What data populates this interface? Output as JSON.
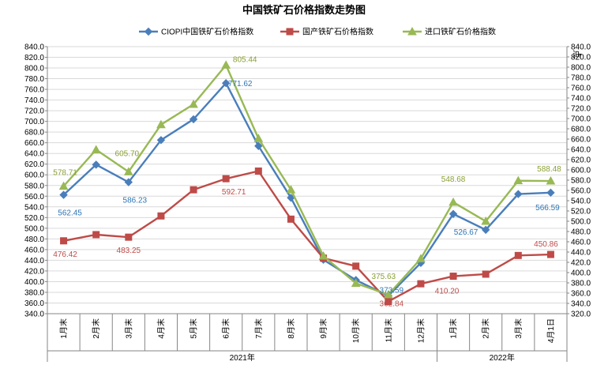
{
  "chart_data": {
    "type": "line",
    "title": "中国铁矿石价格指数走势图",
    "categories": [
      "1月末",
      "2月末",
      "3月末",
      "4月末",
      "5月末",
      "6月末",
      "7月末",
      "8月末",
      "9月末",
      "10月末",
      "11月末",
      "12月末",
      "1月末",
      "2月末",
      "3月末",
      "4月1日"
    ],
    "year_groups": [
      {
        "label": "2021年",
        "start": 0,
        "end": 11
      },
      {
        "label": "2022年",
        "start": 12,
        "end": 15
      }
    ],
    "ylim": [
      340,
      840
    ],
    "y_ticks": [
      "340.0",
      "360.0",
      "380.0",
      "400.0",
      "420.0",
      "440.0",
      "460.0",
      "480.0",
      "500.0",
      "520.0",
      "540.0",
      "560.0",
      "580.0",
      "600.0",
      "620.0",
      "640.0",
      "660.0",
      "680.0",
      "700.0",
      "720.0",
      "740.0",
      "760.0",
      "780.0",
      "800.0",
      "820.0",
      "840.0"
    ],
    "right_axis_ticks": [
      "320.0",
      "340.0",
      "360.0",
      "380.0",
      "400.0",
      "420.0",
      "440.0",
      "460.0",
      "480.0",
      "500.0",
      "520.0",
      "540.0",
      "560.0",
      "580.0",
      "600.0",
      "620.0",
      "640.0",
      "660.0",
      "680.0",
      "700.0",
      "720.0",
      "740.0",
      "760.0",
      "780.0",
      "800.0",
      "820.0",
      "840.0"
    ],
    "right_ylabel": "点",
    "legend_position": "top",
    "series": [
      {
        "name": "CIOPI中国铁矿石价格指数",
        "color": "#4a7ebb",
        "marker": "diamond",
        "values": [
          562.45,
          619,
          586.23,
          665,
          704,
          771.62,
          654,
          557,
          441,
          403,
          373.59,
          435,
          526.67,
          497,
          564,
          566.59
        ]
      },
      {
        "name": "国产铁矿石价格指数",
        "color": "#be4b48",
        "marker": "square",
        "values": [
          476.42,
          488,
          483.25,
          523,
          572,
          592.71,
          607,
          517,
          444,
          429,
          362.84,
          396,
          410.2,
          414,
          449,
          450.86
        ]
      },
      {
        "name": "进口铁矿石价格指数",
        "color": "#98b954",
        "marker": "triangle",
        "values": [
          578.71,
          647,
          605.7,
          694,
          732,
          805.44,
          668,
          572,
          448,
          397,
          375.63,
          443,
          548.68,
          513,
          589,
          588.48
        ]
      }
    ],
    "data_labels": [
      {
        "series": 0,
        "index": 0,
        "text": "562.45"
      },
      {
        "series": 0,
        "index": 2,
        "text": "586.23"
      },
      {
        "series": 0,
        "index": 5,
        "text": "771.62"
      },
      {
        "series": 0,
        "index": 10,
        "text": "373.59"
      },
      {
        "series": 0,
        "index": 12,
        "text": "526.67"
      },
      {
        "series": 0,
        "index": 15,
        "text": "566.59"
      },
      {
        "series": 1,
        "index": 0,
        "text": "476.42"
      },
      {
        "series": 1,
        "index": 2,
        "text": "483.25"
      },
      {
        "series": 1,
        "index": 5,
        "text": "592.71"
      },
      {
        "series": 1,
        "index": 10,
        "text": "362.84"
      },
      {
        "series": 1,
        "index": 12,
        "text": "410.20"
      },
      {
        "series": 1,
        "index": 15,
        "text": "450.86"
      },
      {
        "series": 2,
        "index": 0,
        "text": "578.71"
      },
      {
        "series": 2,
        "index": 2,
        "text": "605.70"
      },
      {
        "series": 2,
        "index": 5,
        "text": "805.44"
      },
      {
        "series": 2,
        "index": 10,
        "text": "375.63"
      },
      {
        "series": 2,
        "index": 12,
        "text": "548.68"
      },
      {
        "series": 2,
        "index": 15,
        "text": "588.48"
      }
    ]
  }
}
